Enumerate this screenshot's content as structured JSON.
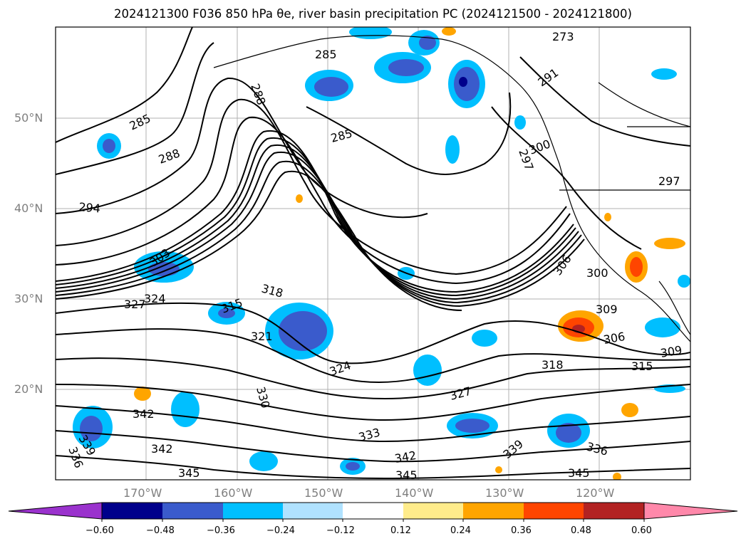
{
  "title": "2024121300 F036 850 hPa θe, river basin precipitation PC (2024121500 - 2024121800)",
  "lat_labels": [
    "50°N",
    "40°N",
    "30°N",
    "20°N"
  ],
  "lon_labels": [
    "170°W",
    "160°W",
    "150°W",
    "140°W",
    "130°W",
    "120°W"
  ],
  "contour_labels": [
    "285",
    "285",
    "285",
    "288",
    "288",
    "291",
    "294",
    "297",
    "297",
    "300",
    "300",
    "303",
    "306",
    "306",
    "309",
    "309",
    "315",
    "315",
    "318",
    "318",
    "321",
    "324",
    "324",
    "327",
    "327",
    "330",
    "333",
    "336",
    "336",
    "339",
    "339",
    "342",
    "342",
    "342",
    "345",
    "345",
    "345",
    "273"
  ],
  "colorbar": {
    "ticks": [
      "−0.60",
      "−0.48",
      "−0.36",
      "−0.24",
      "−0.12",
      "0.12",
      "0.24",
      "0.36",
      "0.48",
      "0.60"
    ],
    "colors": [
      "#9a32cd",
      "#00008b",
      "#3a5bcc",
      "#00bfff",
      "#b0e2ff",
      "#ffffff",
      "#ffec8b",
      "#ffa500",
      "#ff4500",
      "#b22222",
      "#ff88aa"
    ]
  },
  "legend": {
    "pc_colors": {
      "neg_strong": "#3a5bcc",
      "neg_mid": "#00bfff",
      "neg_weak": "#b0e2ff",
      "pos_weak": "#ffec8b",
      "pos_mid": "#ffa500",
      "pos_strong": "#ff4500",
      "pos_stronger": "#b22222",
      "darkest_neg": "#00008b"
    }
  }
}
